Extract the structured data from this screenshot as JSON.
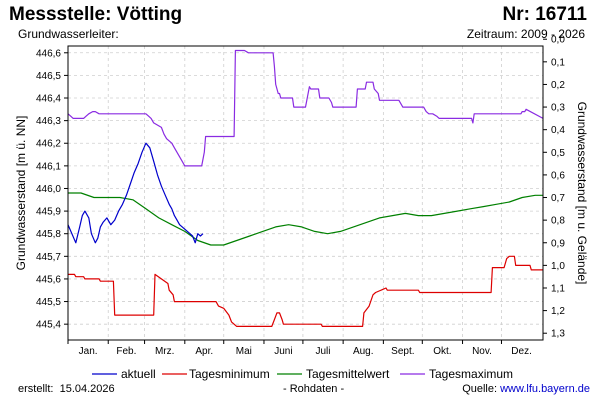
{
  "header": {
    "station": "Messstelle: Vötting",
    "number": "Nr: 16711",
    "aquifer": "Grundwasserleiter:",
    "period": "Zeitraum: 2009 - 2026"
  },
  "footer": {
    "created_label": "erstellt:",
    "created_date": "15.04.2026",
    "note": "- Rohdaten -",
    "source_label": "Quelle:",
    "source_url": "www.lfu.bayern.de"
  },
  "colors": {
    "aktuell": "#0000cc",
    "tagesminimum": "#dd0000",
    "tagesmittelwert": "#008000",
    "tagesmaximum": "#8a2be2",
    "grid": "#cfcfcf"
  },
  "chart_data": {
    "type": "line",
    "xlabel": "",
    "ylabel": "Grundwasserstand [m ü. NN]",
    "ylabel_right": "Grundwasserstand [m u. Gelände]",
    "x_unit": "day of year",
    "xlim": [
      0,
      366
    ],
    "ylim": [
      445.33,
      446.63
    ],
    "ylim_right": [
      1.33,
      0.03
    ],
    "grid": true,
    "legend_position": "bottom",
    "month_ticks": [
      "Jan.",
      "Feb.",
      "Mrz.",
      "Apr.",
      "Mai",
      "Juni",
      "Juli",
      "Aug.",
      "Sept.",
      "Okt.",
      "Nov.",
      "Dez."
    ],
    "yticks_left": [
      "445,4",
      "445,5",
      "445,6",
      "445,7",
      "445,8",
      "445,9",
      "446,0",
      "446,1",
      "446,2",
      "446,3",
      "446,4",
      "446,5",
      "446,6"
    ],
    "yticks_right": [
      "0,0",
      "0,1",
      "0,2",
      "0,3",
      "0,4",
      "0,5",
      "0,6",
      "0,7",
      "0,8",
      "0,9",
      "1,0",
      "1,1",
      "1,2",
      "1,3"
    ],
    "series": [
      {
        "name": "aktuell",
        "x": [
          0,
          3,
          6,
          9,
          11,
          13,
          16,
          18,
          21,
          23,
          25,
          27,
          30,
          33,
          36,
          39,
          42,
          45,
          48,
          51,
          54,
          57,
          60,
          63,
          66,
          69,
          72,
          75,
          78,
          80,
          82,
          84,
          86,
          88,
          90,
          92,
          94,
          96,
          98,
          100,
          102,
          104
        ],
        "values": [
          445.84,
          445.8,
          445.76,
          445.83,
          445.88,
          445.9,
          445.87,
          445.8,
          445.76,
          445.78,
          445.83,
          445.85,
          445.87,
          445.84,
          445.86,
          445.9,
          445.93,
          445.97,
          446.02,
          446.07,
          446.11,
          446.16,
          446.2,
          446.18,
          446.12,
          446.06,
          446.01,
          445.97,
          445.93,
          445.91,
          445.88,
          445.86,
          445.84,
          445.83,
          445.82,
          445.81,
          445.8,
          445.79,
          445.76,
          445.8,
          445.79,
          445.8
        ]
      },
      {
        "name": "Tagesminimum",
        "x": [
          0,
          5,
          6,
          12,
          13,
          24,
          25,
          35,
          36,
          66,
          67,
          77,
          78,
          81,
          82,
          114,
          116,
          120,
          124,
          126,
          128,
          130,
          131,
          157,
          159,
          161,
          163,
          165,
          166,
          195,
          196,
          227,
          228,
          232,
          235,
          237,
          245,
          246,
          270,
          271,
          326,
          327,
          336,
          338,
          340,
          344,
          345,
          356,
          357,
          366
        ],
        "values": [
          445.62,
          445.62,
          445.61,
          445.61,
          445.6,
          445.6,
          445.59,
          445.59,
          445.44,
          445.44,
          445.62,
          445.58,
          445.55,
          445.53,
          445.5,
          445.5,
          445.48,
          445.47,
          445.44,
          445.41,
          445.4,
          445.39,
          445.39,
          445.39,
          445.42,
          445.45,
          445.45,
          445.42,
          445.4,
          445.4,
          445.39,
          445.39,
          445.45,
          445.48,
          445.53,
          445.54,
          445.56,
          445.55,
          445.55,
          445.54,
          445.54,
          445.65,
          445.65,
          445.69,
          445.7,
          445.7,
          445.66,
          445.66,
          445.64,
          445.64
        ]
      },
      {
        "name": "Tagesmittelwert",
        "x": [
          0,
          10,
          20,
          30,
          40,
          50,
          60,
          70,
          80,
          90,
          100,
          110,
          120,
          130,
          140,
          150,
          160,
          170,
          180,
          190,
          200,
          210,
          220,
          230,
          240,
          250,
          260,
          270,
          280,
          290,
          300,
          310,
          320,
          330,
          340,
          350,
          360,
          366
        ],
        "values": [
          445.98,
          445.98,
          445.96,
          445.96,
          445.96,
          445.95,
          445.91,
          445.87,
          445.84,
          445.81,
          445.77,
          445.75,
          445.75,
          445.77,
          445.79,
          445.81,
          445.83,
          445.84,
          445.83,
          445.81,
          445.8,
          445.81,
          445.83,
          445.85,
          445.87,
          445.88,
          445.89,
          445.88,
          445.88,
          445.89,
          445.9,
          445.91,
          445.92,
          445.93,
          445.94,
          445.96,
          445.97,
          445.97
        ]
      },
      {
        "name": "Tagesmaximum",
        "x": [
          0,
          2,
          4,
          6,
          12,
          14,
          16,
          19,
          21,
          24,
          26,
          60,
          62,
          64,
          66,
          72,
          74,
          76,
          80,
          82,
          84,
          86,
          88,
          90,
          103,
          104,
          105,
          106,
          128,
          129,
          131,
          134,
          135,
          136,
          139,
          158,
          159,
          160,
          162,
          163,
          164,
          173,
          174,
          183,
          185,
          186,
          187,
          193,
          194,
          201,
          203,
          204,
          222,
          223,
          229,
          230,
          235,
          236,
          239,
          240,
          255,
          257,
          258,
          274,
          276,
          278,
          281,
          284,
          286,
          291,
          310,
          311,
          312,
          313,
          349,
          350,
          352,
          353,
          366
        ],
        "values": [
          446.33,
          446.32,
          446.31,
          446.31,
          446.31,
          446.32,
          446.33,
          446.34,
          446.34,
          446.33,
          446.33,
          446.33,
          446.32,
          446.31,
          446.29,
          446.27,
          446.24,
          446.22,
          446.2,
          446.18,
          446.16,
          446.14,
          446.12,
          446.1,
          446.1,
          446.13,
          446.16,
          446.23,
          446.23,
          446.61,
          446.61,
          446.61,
          446.61,
          446.61,
          446.6,
          446.6,
          446.54,
          446.46,
          446.42,
          446.42,
          446.4,
          446.4,
          446.36,
          446.36,
          446.42,
          446.45,
          446.44,
          446.44,
          446.4,
          446.4,
          446.38,
          446.36,
          446.36,
          446.44,
          446.44,
          446.47,
          446.47,
          446.44,
          446.42,
          446.39,
          446.39,
          446.37,
          446.36,
          446.36,
          446.34,
          446.33,
          446.33,
          446.32,
          446.31,
          446.31,
          446.31,
          446.31,
          446.29,
          446.33,
          446.33,
          446.34,
          446.34,
          446.35,
          446.31
        ]
      }
    ]
  }
}
